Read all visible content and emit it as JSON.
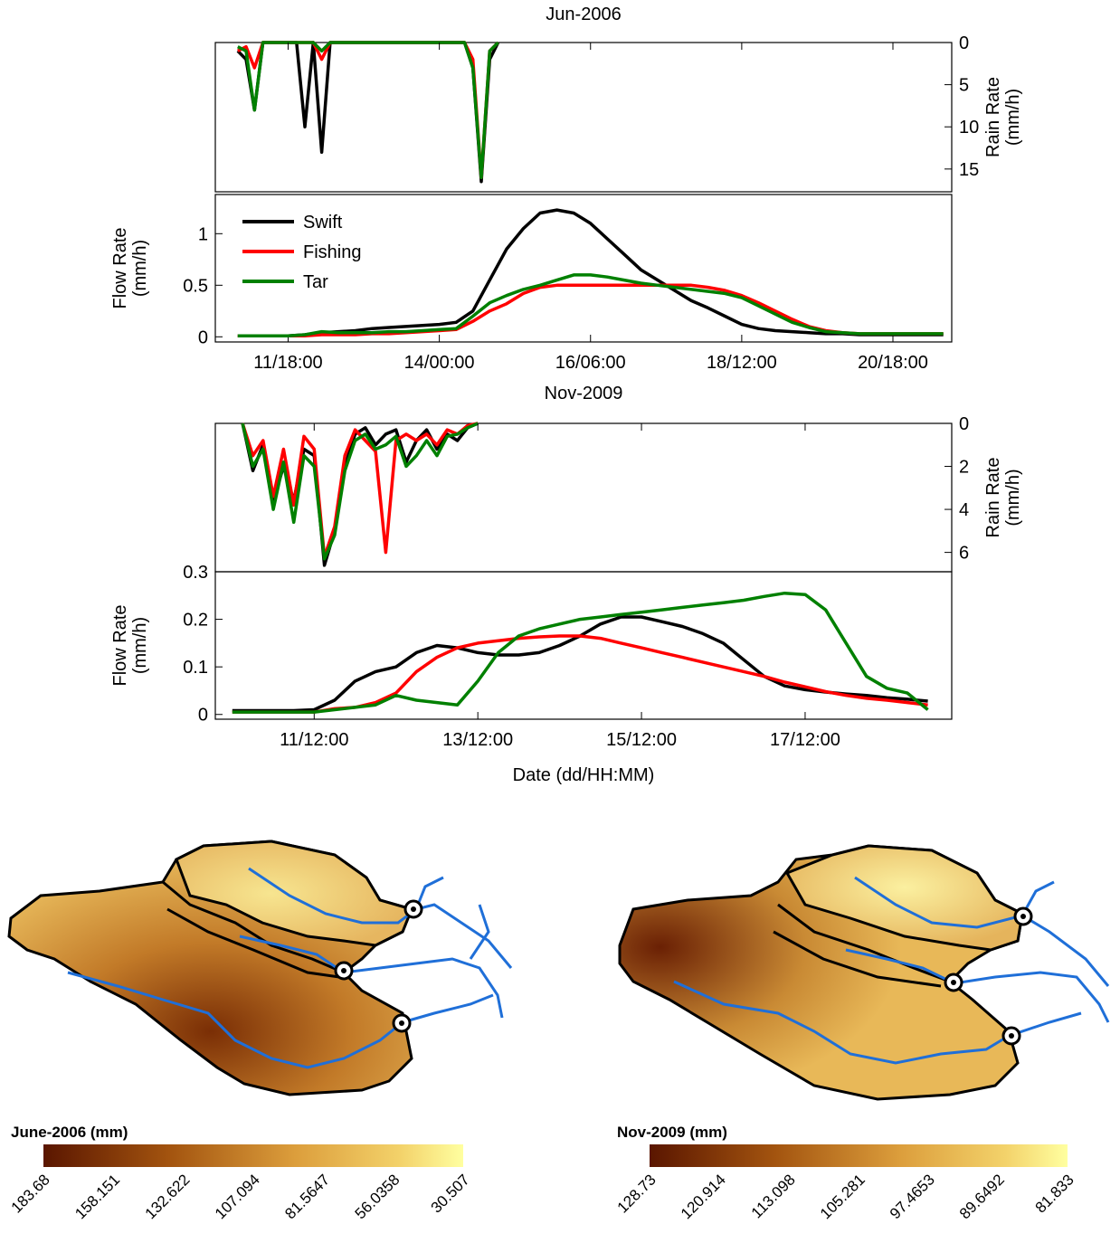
{
  "chart_data": [
    {
      "type": "line",
      "title": "Jun-2006",
      "y_inverted": true,
      "yaxis_side": "right",
      "ylabel": [
        "Rain Rate",
        "(mm/h)"
      ],
      "xlim": [
        "10/16:00",
        "21/15:00"
      ],
      "ylim": [
        0,
        17.7
      ],
      "yticks": [
        0,
        5,
        10,
        15
      ],
      "x": [
        "11/00:00",
        "11/03:00",
        "11/06:00",
        "11/09:00",
        "11/12:00",
        "11/15:00",
        "11/18:00",
        "11/21:00",
        "12/00:00",
        "12/03:00",
        "12/06:00",
        "12/09:00",
        "12/12:00",
        "12/15:00",
        "12/18:00",
        "12/21:00",
        "13/00:00",
        "13/03:00",
        "13/06:00",
        "13/09:00",
        "13/12:00",
        "13/15:00",
        "13/18:00",
        "13/21:00",
        "14/00:00",
        "14/03:00",
        "14/06:00",
        "14/09:00",
        "14/12:00",
        "14/15:00",
        "14/18:00",
        "14/21:00"
      ],
      "series": [
        {
          "name": "Swift",
          "color": "#000000",
          "values": [
            1,
            2,
            8,
            0,
            0,
            0,
            0,
            0,
            10,
            0,
            13,
            0,
            0,
            0,
            0,
            0,
            0,
            0,
            0,
            0,
            0,
            0,
            0,
            0,
            0,
            0,
            0,
            0,
            3,
            16.5,
            2,
            0
          ]
        },
        {
          "name": "Fishing",
          "color": "#ff0000",
          "values": [
            1,
            0.5,
            3,
            0,
            0,
            0,
            0,
            0,
            0,
            0,
            2,
            0,
            0,
            0,
            0,
            0,
            0,
            0,
            0,
            0,
            0,
            0,
            0,
            0,
            0,
            0,
            0,
            0,
            2,
            16,
            1,
            0
          ]
        },
        {
          "name": "Tar",
          "color": "#008000",
          "values": [
            0.5,
            1,
            8,
            0,
            0,
            0,
            0,
            0,
            0,
            0,
            1,
            0,
            0,
            0,
            0,
            0,
            0,
            0,
            0,
            0,
            0,
            0,
            0,
            0,
            0,
            0,
            0,
            0,
            3,
            16,
            1,
            0
          ]
        }
      ]
    },
    {
      "type": "line",
      "ylabel": [
        "Flow Rate",
        "(mm/h)"
      ],
      "legend": "upper left",
      "yaxis_side": "left",
      "xlim": [
        "10/16:00",
        "21/15:00"
      ],
      "ylim": [
        -0.05,
        1.38
      ],
      "yticks": [
        0,
        0.5,
        1
      ],
      "xticks": [
        "11/18:00",
        "14/00:00",
        "16/06:00",
        "18/12:00",
        "20/18:00"
      ],
      "x": [
        "11/00:00",
        "11/06:00",
        "11/12:00",
        "11/18:00",
        "12/00:00",
        "12/06:00",
        "12/12:00",
        "12/18:00",
        "13/00:00",
        "13/06:00",
        "13/12:00",
        "13/18:00",
        "14/00:00",
        "14/06:00",
        "14/12:00",
        "14/18:00",
        "15/00:00",
        "15/06:00",
        "15/12:00",
        "15/18:00",
        "16/00:00",
        "16/06:00",
        "16/12:00",
        "16/18:00",
        "17/00:00",
        "17/06:00",
        "17/12:00",
        "17/18:00",
        "18/00:00",
        "18/06:00",
        "18/12:00",
        "18/18:00",
        "19/00:00",
        "19/06:00",
        "19/12:00",
        "19/18:00",
        "20/00:00",
        "20/06:00",
        "20/12:00",
        "20/18:00",
        "21/00:00",
        "21/06:00",
        "21/12:00"
      ],
      "series": [
        {
          "name": "Swift",
          "color": "#000000",
          "values": [
            0.01,
            0.01,
            0.01,
            0.01,
            0.02,
            0.04,
            0.05,
            0.06,
            0.08,
            0.09,
            0.1,
            0.11,
            0.12,
            0.14,
            0.25,
            0.55,
            0.85,
            1.05,
            1.2,
            1.23,
            1.2,
            1.1,
            0.95,
            0.8,
            0.65,
            0.55,
            0.45,
            0.35,
            0.28,
            0.2,
            0.12,
            0.08,
            0.06,
            0.05,
            0.04,
            0.03,
            0.03,
            0.02,
            0.02,
            0.02,
            0.02,
            0.02,
            0.02
          ]
        },
        {
          "name": "Fishing",
          "color": "#ff0000",
          "values": [
            0.01,
            0.01,
            0.01,
            0.01,
            0.01,
            0.02,
            0.02,
            0.02,
            0.03,
            0.03,
            0.04,
            0.05,
            0.06,
            0.07,
            0.15,
            0.25,
            0.32,
            0.42,
            0.48,
            0.5,
            0.5,
            0.5,
            0.5,
            0.5,
            0.5,
            0.5,
            0.5,
            0.5,
            0.48,
            0.45,
            0.4,
            0.33,
            0.25,
            0.17,
            0.1,
            0.06,
            0.04,
            0.03,
            0.03,
            0.03,
            0.03,
            0.03,
            0.03
          ]
        },
        {
          "name": "Tar",
          "color": "#008000",
          "values": [
            0.01,
            0.01,
            0.01,
            0.01,
            0.02,
            0.05,
            0.04,
            0.04,
            0.04,
            0.05,
            0.05,
            0.06,
            0.07,
            0.08,
            0.2,
            0.33,
            0.4,
            0.46,
            0.5,
            0.55,
            0.6,
            0.6,
            0.58,
            0.55,
            0.52,
            0.5,
            0.48,
            0.46,
            0.44,
            0.42,
            0.38,
            0.3,
            0.22,
            0.14,
            0.09,
            0.05,
            0.04,
            0.03,
            0.03,
            0.03,
            0.03,
            0.03,
            0.03
          ]
        }
      ]
    },
    {
      "type": "line",
      "title": "Nov-2009",
      "y_inverted": true,
      "yaxis_side": "right",
      "ylabel": [
        "Rain Rate",
        "(mm/h)"
      ],
      "xlim": [
        "10/07:00",
        "19/07:00"
      ],
      "ylim": [
        0,
        6.9
      ],
      "yticks": [
        0,
        2,
        4,
        6
      ],
      "x": [
        "10/15:00",
        "10/18:00",
        "10/21:00",
        "11/00:00",
        "11/03:00",
        "11/06:00",
        "11/09:00",
        "11/12:00",
        "11/15:00",
        "11/18:00",
        "11/21:00",
        "12/00:00",
        "12/03:00",
        "12/06:00",
        "12/09:00",
        "12/12:00",
        "12/15:00",
        "12/18:00",
        "12/21:00",
        "13/00:00",
        "13/03:00",
        "13/06:00",
        "13/09:00",
        "13/12:00"
      ],
      "series": [
        {
          "name": "Swift",
          "color": "#000000",
          "values": [
            0,
            2.2,
            1,
            3.6,
            2,
            3.6,
            1.2,
            1.5,
            6.6,
            5,
            2,
            0.5,
            0.2,
            1,
            0.5,
            0.3,
            1.8,
            0.8,
            0.3,
            1.2,
            0.5,
            0.8,
            0.2,
            0
          ]
        },
        {
          "name": "Fishing",
          "color": "#ff0000",
          "values": [
            0,
            1.5,
            0.8,
            3.4,
            1.2,
            3.8,
            0.6,
            1.2,
            6.2,
            4.8,
            1.5,
            0.3,
            0.8,
            1.3,
            6,
            0.8,
            0.5,
            0.8,
            0.5,
            1,
            0.3,
            0.5,
            0.1,
            0
          ]
        },
        {
          "name": "Tar",
          "color": "#008000",
          "values": [
            0,
            2,
            1.2,
            4,
            1.8,
            4.6,
            1.5,
            2,
            6.3,
            5.2,
            2.2,
            0.8,
            0.5,
            1.2,
            1,
            0.6,
            2,
            1.5,
            0.8,
            1.5,
            0.6,
            0.5,
            0.2,
            0
          ]
        }
      ]
    },
    {
      "type": "line",
      "ylabel": [
        "Flow Rate",
        "(mm/h)"
      ],
      "yaxis_side": "left",
      "xlabel": "Date (dd/HH:MM)",
      "xlim": [
        "10/07:00",
        "19/07:00"
      ],
      "ylim": [
        -0.01,
        0.3
      ],
      "yticks": [
        0,
        0.1,
        0.2,
        0.3
      ],
      "xticks": [
        "11/12:00",
        "13/12:00",
        "15/12:00",
        "17/12:00"
      ],
      "x": [
        "10/12:00",
        "10/18:00",
        "11/00:00",
        "11/06:00",
        "11/12:00",
        "11/18:00",
        "12/00:00",
        "12/06:00",
        "12/12:00",
        "12/18:00",
        "13/00:00",
        "13/06:00",
        "13/12:00",
        "13/18:00",
        "14/00:00",
        "14/06:00",
        "14/12:00",
        "14/18:00",
        "15/00:00",
        "15/06:00",
        "15/12:00",
        "15/18:00",
        "16/00:00",
        "16/06:00",
        "16/12:00",
        "16/18:00",
        "17/00:00",
        "17/06:00",
        "17/12:00",
        "17/18:00",
        "18/00:00",
        "18/06:00",
        "18/12:00",
        "18/18:00",
        "19/00:00"
      ],
      "series": [
        {
          "name": "Swift",
          "color": "#000000",
          "values": [
            0.008,
            0.008,
            0.008,
            0.008,
            0.01,
            0.03,
            0.07,
            0.09,
            0.1,
            0.13,
            0.145,
            0.14,
            0.13,
            0.125,
            0.125,
            0.13,
            0.145,
            0.165,
            0.19,
            0.205,
            0.205,
            0.195,
            0.185,
            0.17,
            0.15,
            0.115,
            0.08,
            0.06,
            0.052,
            0.047,
            0.043,
            0.04,
            0.035,
            0.032,
            0.028
          ]
        },
        {
          "name": "Fishing",
          "color": "#ff0000",
          "values": [
            0.005,
            0.005,
            0.005,
            0.005,
            0.005,
            0.012,
            0.015,
            0.025,
            0.045,
            0.09,
            0.12,
            0.14,
            0.15,
            0.155,
            0.16,
            0.163,
            0.165,
            0.165,
            0.16,
            0.15,
            0.14,
            0.13,
            0.12,
            0.11,
            0.1,
            0.09,
            0.08,
            0.068,
            0.058,
            0.048,
            0.04,
            0.034,
            0.03,
            0.025,
            0.02
          ]
        },
        {
          "name": "Tar",
          "color": "#008000",
          "values": [
            0.005,
            0.005,
            0.005,
            0.005,
            0.005,
            0.01,
            0.015,
            0.02,
            0.04,
            0.03,
            0.025,
            0.02,
            0.07,
            0.13,
            0.165,
            0.18,
            0.19,
            0.2,
            0.205,
            0.21,
            0.215,
            0.22,
            0.225,
            0.23,
            0.235,
            0.24,
            0.248,
            0.255,
            0.252,
            0.22,
            0.15,
            0.08,
            0.055,
            0.045,
            0.01
          ]
        }
      ]
    }
  ],
  "maps": [
    {
      "title": "June-2006 (mm)",
      "colorbar_ticks": [
        "183.68",
        "158.151",
        "132.622",
        "107.094",
        "81.5647",
        "56.0358",
        "30.507"
      ]
    },
    {
      "title": "Nov-2009 (mm)",
      "colorbar_ticks": [
        "128.73",
        "120.914",
        "113.098",
        "105.281",
        "97.4653",
        "89.6492",
        "81.833"
      ]
    }
  ]
}
